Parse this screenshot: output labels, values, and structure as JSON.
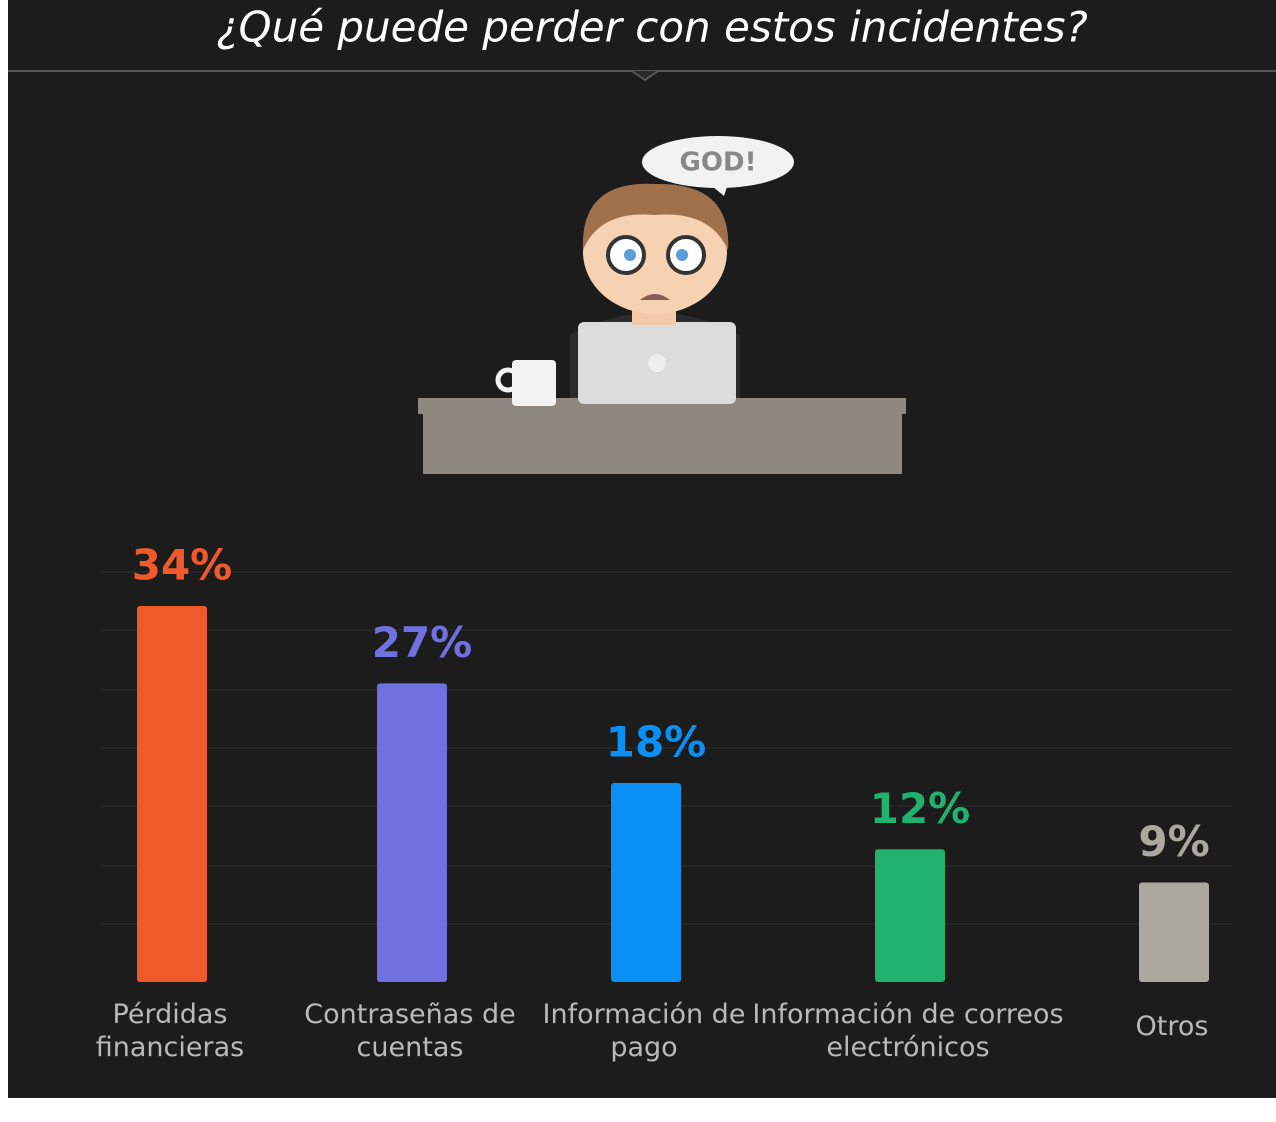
{
  "chart_data": {
    "type": "bar",
    "title": "¿Qué puede perder con estos incidentes?",
    "speech_bubble": "GOD!",
    "categories": [
      "Pérdidas financieras",
      "Contraseñas de cuentas",
      "Información de pago",
      "Información de correos electrónicos",
      "Otros"
    ],
    "values": [
      34,
      27,
      18,
      12,
      9
    ],
    "value_labels": [
      "34%",
      "27%",
      "18%",
      "12%",
      "9%"
    ],
    "colors": [
      "#f05a2b",
      "#7070e0",
      "#0a8ff5",
      "#22b26f",
      "#aba99f"
    ]
  }
}
